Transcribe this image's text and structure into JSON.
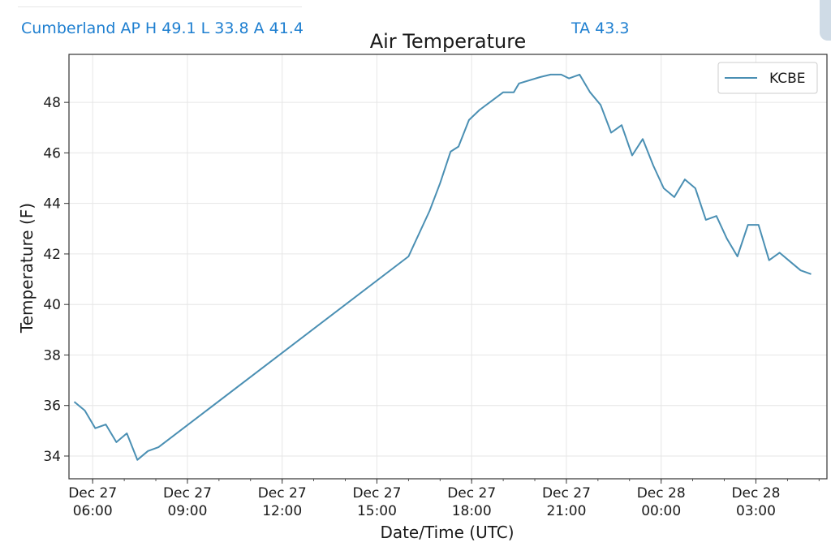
{
  "header": {
    "station_summary": "Cumberland AP H 49.1 L 33.8 A 41.4",
    "ta_readout": "TA 43.3"
  },
  "colors": {
    "header_text": "#1e7fd0",
    "series_line": "#4a8fb3",
    "grid": "#e6e6e6",
    "axis": "#333333"
  },
  "chart_data": {
    "type": "line",
    "title": "Air Temperature",
    "xlabel": "Date/Time (UTC)",
    "ylabel": "Temperature (F)",
    "x_unit": "hours",
    "xlim": [
      "Dec 27 05:15",
      "Dec 28 05:15"
    ],
    "ylim": [
      33.1,
      49.9
    ],
    "yticks": [
      34,
      36,
      38,
      40,
      42,
      44,
      46,
      48
    ],
    "xticks": [
      {
        "x": "Dec 27 06:00",
        "date": "Dec 27",
        "time": "06:00"
      },
      {
        "x": "Dec 27 09:00",
        "date": "Dec 27",
        "time": "09:00"
      },
      {
        "x": "Dec 27 12:00",
        "date": "Dec 27",
        "time": "12:00"
      },
      {
        "x": "Dec 27 15:00",
        "date": "Dec 27",
        "time": "15:00"
      },
      {
        "x": "Dec 27 18:00",
        "date": "Dec 27",
        "time": "18:00"
      },
      {
        "x": "Dec 27 21:00",
        "date": "Dec 27",
        "time": "21:00"
      },
      {
        "x": "Dec 28 00:00",
        "date": "Dec 28",
        "time": "00:00"
      },
      {
        "x": "Dec 28 03:00",
        "date": "Dec 28",
        "time": "03:00"
      }
    ],
    "grid": true,
    "legend_position": "top-right",
    "series": [
      {
        "name": "KCBE",
        "color": "#4a8fb3",
        "points": [
          [
            "Dec 27 05:25",
            36.15
          ],
          [
            "Dec 27 05:45",
            35.8
          ],
          [
            "Dec 27 06:05",
            35.1
          ],
          [
            "Dec 27 06:25",
            35.25
          ],
          [
            "Dec 27 06:45",
            34.55
          ],
          [
            "Dec 27 07:05",
            34.9
          ],
          [
            "Dec 27 07:25",
            33.85
          ],
          [
            "Dec 27 07:45",
            34.2
          ],
          [
            "Dec 27 08:05",
            34.35
          ],
          [
            "Dec 27 16:00",
            41.9
          ],
          [
            "Dec 27 16:40",
            43.7
          ],
          [
            "Dec 27 17:00",
            44.8
          ],
          [
            "Dec 27 17:20",
            46.05
          ],
          [
            "Dec 27 17:35",
            46.25
          ],
          [
            "Dec 27 17:55",
            47.3
          ],
          [
            "Dec 27 18:15",
            47.7
          ],
          [
            "Dec 27 19:00",
            48.4
          ],
          [
            "Dec 27 19:20",
            48.4
          ],
          [
            "Dec 27 19:30",
            48.75
          ],
          [
            "Dec 27 20:10",
            49.0
          ],
          [
            "Dec 27 20:30",
            49.1
          ],
          [
            "Dec 27 20:50",
            49.1
          ],
          [
            "Dec 27 21:05",
            48.95
          ],
          [
            "Dec 27 21:25",
            49.1
          ],
          [
            "Dec 27 21:45",
            48.4
          ],
          [
            "Dec 27 22:05",
            47.9
          ],
          [
            "Dec 27 22:25",
            46.8
          ],
          [
            "Dec 27 22:45",
            47.1
          ],
          [
            "Dec 27 23:05",
            45.9
          ],
          [
            "Dec 27 23:25",
            46.55
          ],
          [
            "Dec 27 23:45",
            45.5
          ],
          [
            "Dec 28 00:05",
            44.6
          ],
          [
            "Dec 28 00:25",
            44.25
          ],
          [
            "Dec 28 00:45",
            44.95
          ],
          [
            "Dec 28 01:05",
            44.6
          ],
          [
            "Dec 28 01:25",
            43.35
          ],
          [
            "Dec 28 01:45",
            43.5
          ],
          [
            "Dec 28 02:05",
            42.6
          ],
          [
            "Dec 28 02:25",
            41.9
          ],
          [
            "Dec 28 02:45",
            43.15
          ],
          [
            "Dec 28 03:05",
            43.15
          ],
          [
            "Dec 28 03:25",
            41.75
          ],
          [
            "Dec 28 03:45",
            42.05
          ],
          [
            "Dec 28 04:05",
            41.7
          ],
          [
            "Dec 28 04:25",
            41.35
          ],
          [
            "Dec 28 04:45",
            41.2
          ]
        ]
      }
    ]
  }
}
